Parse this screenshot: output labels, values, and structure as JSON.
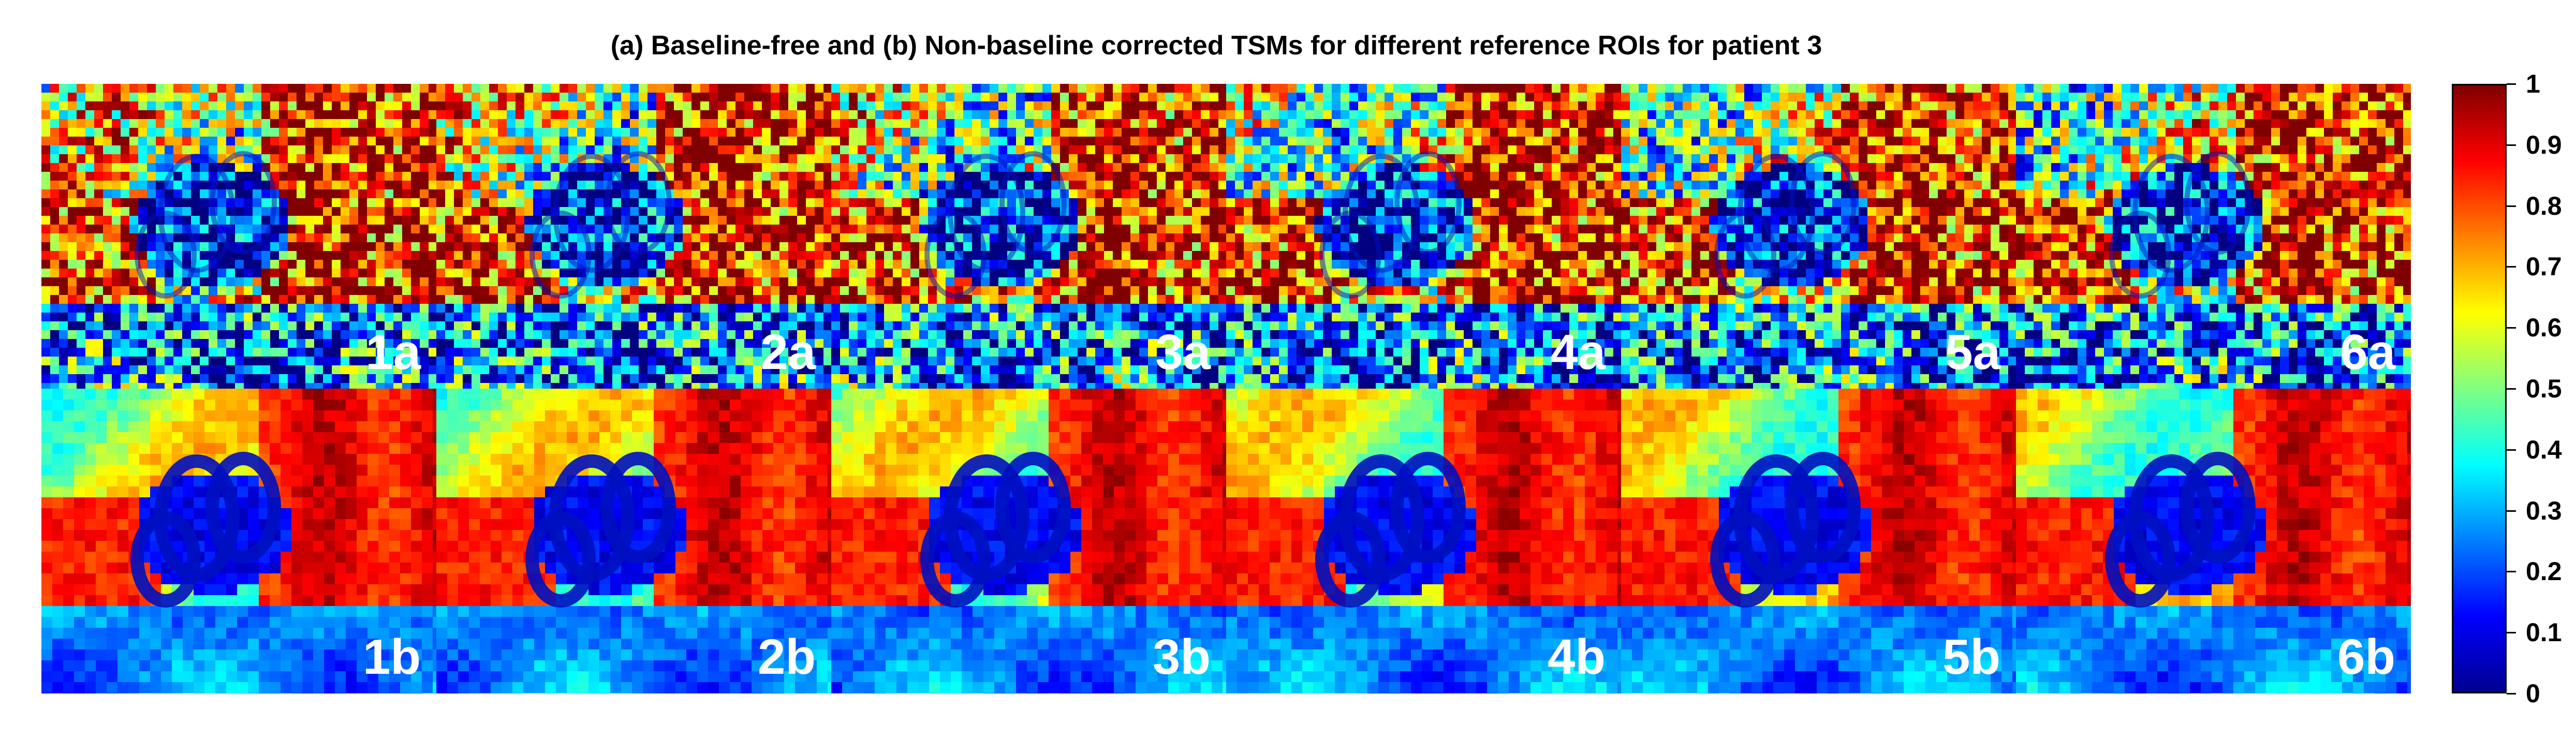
{
  "title": "(a) Baseline-free and (b) Non-baseline corrected TSMs for different reference ROIs for patient 3",
  "panels_top": [
    "1a",
    "2a",
    "3a",
    "4a",
    "5a",
    "6a"
  ],
  "panels_bottom": [
    "1b",
    "2b",
    "3b",
    "4b",
    "5b",
    "6b"
  ],
  "colorbar": {
    "colormap": "jet",
    "ticks": [
      "0",
      "0.1",
      "0.2",
      "0.3",
      "0.4",
      "0.5",
      "0.6",
      "0.7",
      "0.8",
      "0.9",
      "1"
    ],
    "range": [
      0,
      1
    ]
  },
  "colors": {
    "background": "#ffffff",
    "label": "#ffffff",
    "dark_blue": "#00008f",
    "dark_red": "#800000"
  }
}
